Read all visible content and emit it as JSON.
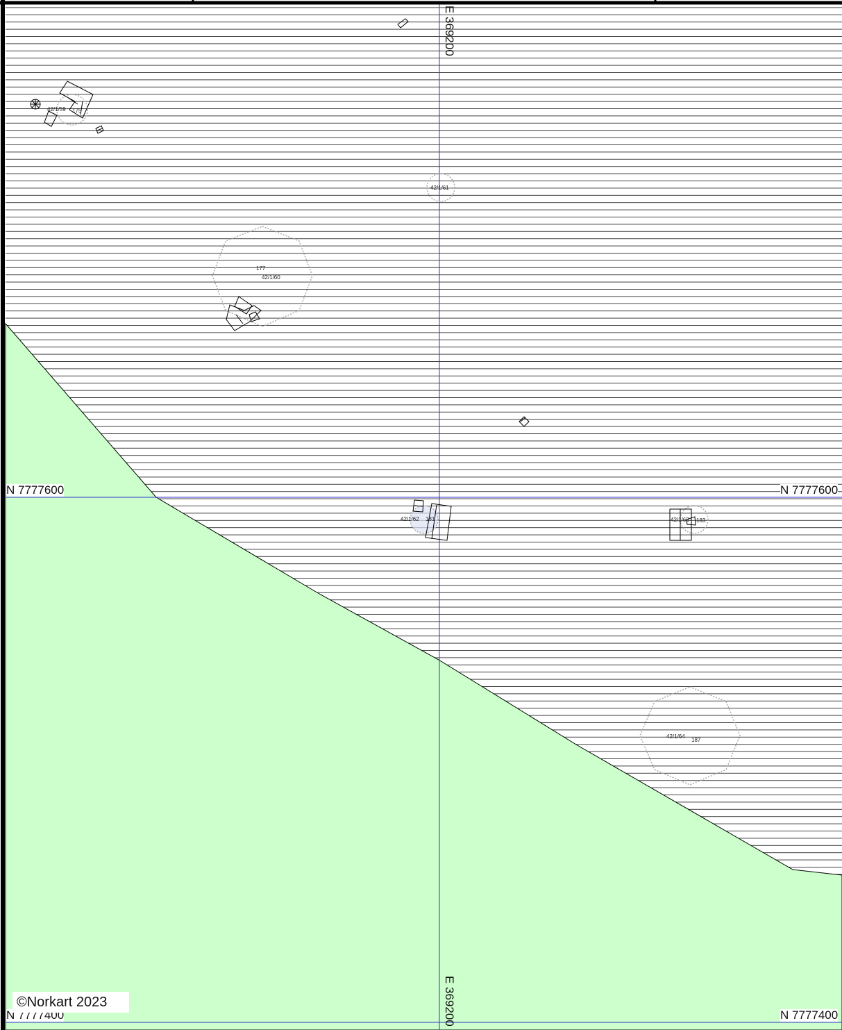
{
  "map": {
    "copyright": "©Norkart 2023",
    "colors": {
      "background": "#ffffff",
      "green_zone": "#ccffcc",
      "hatch": "#000000",
      "grid_line": "#3333cc",
      "building": "#000000",
      "parcel_circle": "#aaaaaa",
      "frame": "#000000"
    },
    "grid": {
      "easting_label_top": "E 369200",
      "easting_label_bottom": "E 369200",
      "northing_upper_left": "N 7777600",
      "northing_upper_right": "N 7777600",
      "northing_lower_left": "N 7777400",
      "northing_lower_right": "N 7777400"
    },
    "parcels": [
      {
        "id": "42/1/59",
        "number": "175"
      },
      {
        "id": "42/1/61",
        "number": ""
      },
      {
        "id": "42/1/60",
        "number": "177"
      },
      {
        "id": "42/1/62",
        "number": "181"
      },
      {
        "id": "42/1/63",
        "number": "183"
      },
      {
        "id": "42/1/64",
        "number": "187"
      }
    ]
  }
}
